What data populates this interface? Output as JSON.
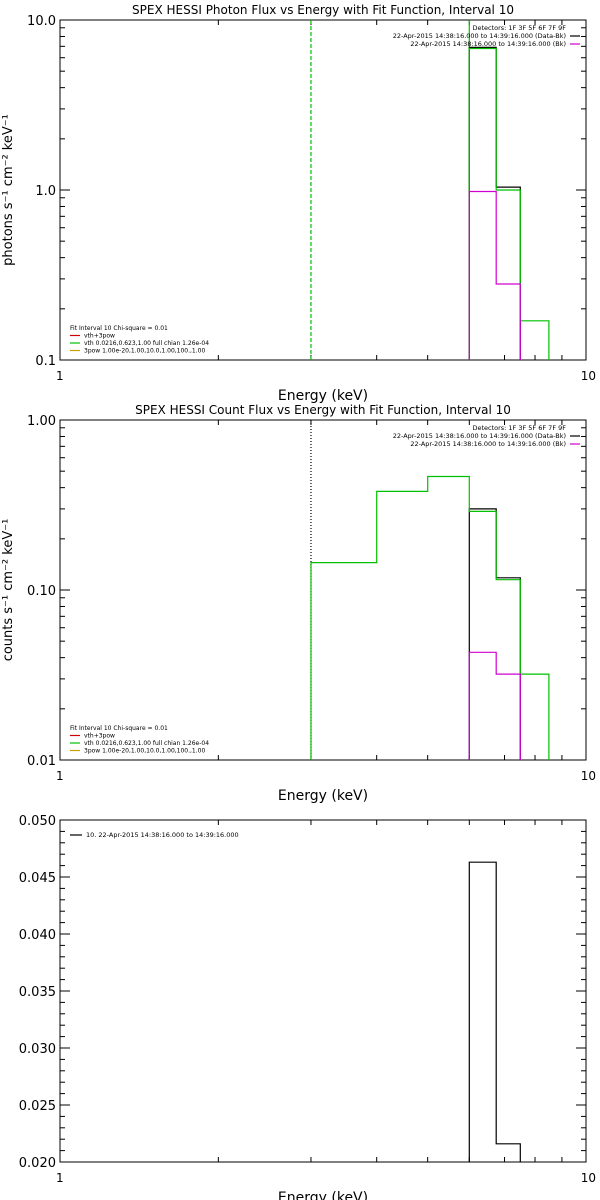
{
  "chart_data": [
    {
      "type": "line",
      "title": "SPEX HESSI Photon Flux vs Energy with Fit Function, Interval 10",
      "xlabel": "Energy (keV)",
      "ylabel": "photons s⁻¹ cm⁻² keV⁻¹",
      "x_scale": "log",
      "y_scale": "log",
      "xlim": [
        1,
        10
      ],
      "ylim": [
        0.1,
        10
      ],
      "x_tick_labels": [
        "1",
        "10"
      ],
      "y_tick_labels": [
        "0.1",
        "1.0",
        "10.0"
      ],
      "y_tick_values": [
        0.1,
        1,
        10
      ],
      "vlines": [
        {
          "x": 3.0,
          "color": "#00c000",
          "style": "dashed"
        },
        {
          "x": 6.0,
          "color": "#00c000",
          "style": "solid"
        }
      ],
      "legend_top": {
        "placement": "top-right",
        "lines": [
          {
            "text": "Detectors: 1F 3F 5F 6F 7F 9F",
            "color": ""
          },
          {
            "text": "22-Apr-2015 14:38:16.000 to 14:39:16.000 (Data-Bk)",
            "color": "#000000"
          },
          {
            "text": "22-Apr-2015 14:38:16.000 to 14:39:16.000 (Bk)",
            "color": "#d000d0"
          }
        ]
      },
      "legend_bottom": {
        "placement": "bottom-left",
        "lines": [
          {
            "text": "Fit Interval 10   Chi-square = 0.01",
            "color": ""
          },
          {
            "text": "vth+3pow",
            "color": "#d00000"
          },
          {
            "text": "vth 0.0216,0.623,1.00  full chian 1.26e-04",
            "color": "#00c000"
          },
          {
            "text": "3pow 1.00e-20,1.00,10.0,1.00,100.,1.00",
            "color": "#c8a000"
          }
        ]
      },
      "series": [
        {
          "color": "#000000",
          "edges": [
            6.0,
            6.75,
            7.5
          ],
          "values": [
            6.9,
            1.04
          ]
        },
        {
          "color": "#00c000",
          "edges": [
            6.0,
            6.75,
            7.5,
            8.5
          ],
          "values": [
            6.8,
            1.0,
            0.17
          ]
        },
        {
          "color": "#d000d0",
          "edges": [
            6.0,
            6.75,
            7.5
          ],
          "values": [
            0.98,
            0.28
          ]
        }
      ]
    },
    {
      "type": "line",
      "title": "SPEX HESSI Count Flux vs Energy with Fit Function, Interval 10",
      "xlabel": "Energy (keV)",
      "ylabel": "counts s⁻¹ cm⁻² keV⁻¹",
      "x_scale": "log",
      "y_scale": "log",
      "xlim": [
        1,
        10
      ],
      "ylim": [
        0.01,
        1
      ],
      "x_tick_labels": [
        "1",
        "10"
      ],
      "y_tick_labels": [
        "0.01",
        "0.10",
        "1.00"
      ],
      "y_tick_values": [
        0.01,
        0.1,
        1
      ],
      "vlines": [
        {
          "x": 3.0,
          "color": "#000000",
          "style": "dotted"
        }
      ],
      "legend_top": {
        "placement": "top-right",
        "lines": [
          {
            "text": "Detectors: 1F 3F 5F 6F 7F 9F",
            "color": ""
          },
          {
            "text": "22-Apr-2015 14:38:16.000 to 14:39:16.000 (Data-Bk)",
            "color": "#000000"
          },
          {
            "text": "22-Apr-2015 14:38:16.000 to 14:39:16.000 (Bk)",
            "color": "#d000d0"
          }
        ]
      },
      "legend_bottom": {
        "placement": "bottom-left",
        "lines": [
          {
            "text": "Fit Interval 10   Chi-square = 0.01",
            "color": ""
          },
          {
            "text": "vth+3pow",
            "color": "#d00000"
          },
          {
            "text": "vth 0.0216,0.623,1.00  full chian 1.26e-04",
            "color": "#00c000"
          },
          {
            "text": "3pow 1.00e-20,1.00,10.0,1.00,100.,1.00",
            "color": "#c8a000"
          }
        ]
      },
      "series": [
        {
          "color": "#000000",
          "edges": [
            6.0,
            6.75,
            7.5
          ],
          "values": [
            0.3,
            0.118
          ]
        },
        {
          "color": "#00c000",
          "edges": [
            3.0,
            4.0,
            5.0,
            6.0,
            6.75,
            7.5,
            8.5
          ],
          "values": [
            0.145,
            0.38,
            0.465,
            0.29,
            0.115,
            0.032
          ],
          "drop_to_floor": true
        },
        {
          "color": "#d000d0",
          "edges": [
            6.0,
            6.75,
            7.5
          ],
          "values": [
            0.043,
            0.032
          ]
        }
      ]
    },
    {
      "type": "line",
      "title": "",
      "xlabel": "Energy (keV)",
      "ylabel": "",
      "x_scale": "log",
      "y_scale": "linear",
      "xlim": [
        1,
        10
      ],
      "ylim": [
        0.02,
        0.05
      ],
      "x_tick_labels": [
        "1",
        "10"
      ],
      "y_tick_labels": [
        "0.020",
        "0.025",
        "0.030",
        "0.035",
        "0.040",
        "0.045",
        "0.050"
      ],
      "y_tick_values": [
        0.02,
        0.025,
        0.03,
        0.035,
        0.04,
        0.045,
        0.05
      ],
      "vlines": [],
      "legend_top": {
        "placement": "top-left",
        "lines": [
          {
            "text": "10. 22-Apr-2015 14:38:16.000 to 14:39:16.000",
            "color": "#000000"
          }
        ]
      },
      "legend_bottom": {
        "placement": "",
        "lines": []
      },
      "series": [
        {
          "color": "#000000",
          "edges": [
            6.0,
            6.75,
            7.5
          ],
          "values": [
            0.0463,
            0.0216
          ]
        }
      ]
    }
  ]
}
